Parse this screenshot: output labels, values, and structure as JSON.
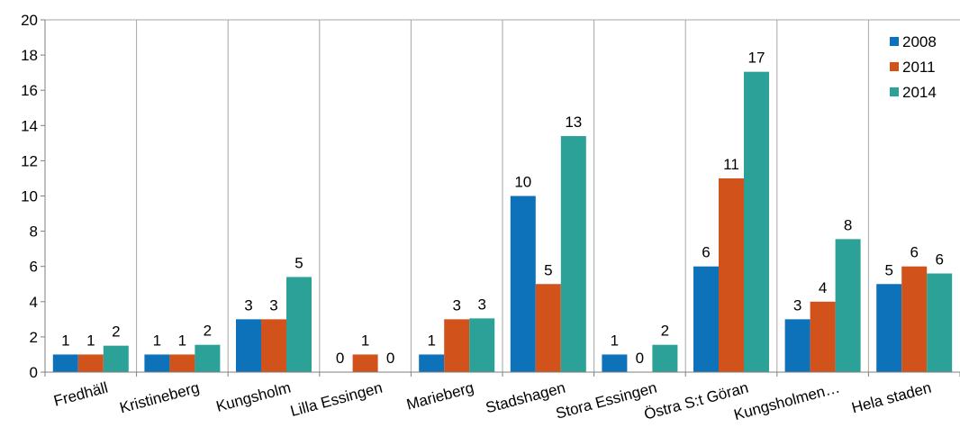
{
  "chart_data": {
    "type": "bar",
    "title": "",
    "xlabel": "",
    "ylabel": "",
    "ylim": [
      0,
      20
    ],
    "yticks": [
      0,
      2,
      4,
      6,
      8,
      10,
      12,
      14,
      16,
      18,
      20
    ],
    "grid": "vertical-category-separators",
    "legend_position": "top-right",
    "categories": [
      "Fredhäll",
      "Kristineberg",
      "Kungsholm",
      "Lilla Essingen",
      "Marieberg",
      "Stadshagen",
      "Stora Essingen",
      "Östra S:t Göran",
      "Kungsholmen…",
      "Hela staden"
    ],
    "series": [
      {
        "name": "2008",
        "color": "#0E72BA",
        "values": [
          1,
          1,
          3,
          0,
          1,
          10,
          1,
          6,
          3,
          5
        ],
        "labels": [
          "1",
          "1",
          "3",
          "0",
          "1",
          "10",
          "1",
          "6",
          "3",
          "5"
        ]
      },
      {
        "name": "2011",
        "color": "#D2521C",
        "values": [
          1,
          1,
          3,
          1,
          3,
          5,
          0,
          11,
          4,
          6
        ],
        "labels": [
          "1",
          "1",
          "3",
          "1",
          "3",
          "5",
          "0",
          "11",
          "4",
          "6"
        ]
      },
      {
        "name": "2014",
        "color": "#2BA197",
        "values": [
          1.5,
          1.55,
          5.4,
          0,
          3.05,
          13.4,
          1.55,
          17.05,
          7.55,
          5.6
        ],
        "labels": [
          "2",
          "2",
          "5",
          "0",
          "3",
          "13",
          "2",
          "17",
          "8",
          "6"
        ]
      }
    ]
  }
}
